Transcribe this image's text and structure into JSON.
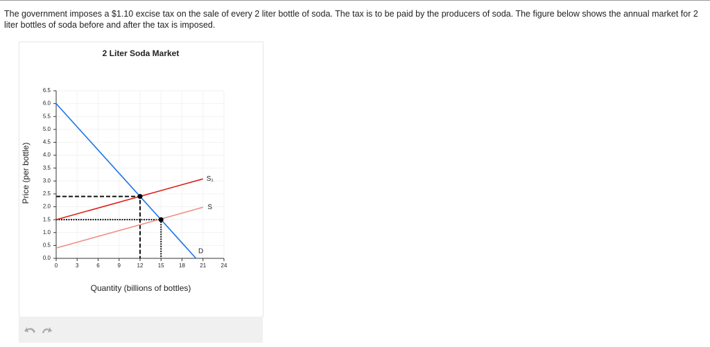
{
  "question": "The government imposes a $1.10 excise tax on the sale of every 2 liter bottle of soda. The tax is to be paid by the producers of soda. The figure below shows the annual market for 2 liter bottles of soda before and after the tax is imposed.",
  "chart_data": {
    "type": "line",
    "title": "2 Liter Soda Market",
    "x_label": "Quantity (billions of bottles)",
    "y_label": "Price (per bottle)",
    "xlim": [
      0,
      24
    ],
    "ylim": [
      0,
      6.5
    ],
    "xticks": [
      0,
      3,
      6,
      9,
      12,
      15,
      18,
      21,
      24
    ],
    "yticks": [
      {
        "value": 0,
        "label": "0.0"
      },
      0.5,
      {
        "value": 1,
        "label": "1.0"
      },
      1.5,
      {
        "value": 2,
        "label": "2.0"
      },
      2.5,
      {
        "value": 3,
        "label": "3.0"
      },
      3.5,
      {
        "value": 4,
        "label": "4.0"
      },
      4.5,
      {
        "value": 5,
        "label": "5.0"
      },
      5.5,
      {
        "value": 6,
        "label": "6.0"
      },
      6.5
    ],
    "grid": true,
    "series": [
      {
        "name": "D",
        "color": "#1a73e8",
        "x": [
          0,
          20
        ],
        "values": [
          6.0,
          0
        ]
      },
      {
        "name": "S₁",
        "color": "#e0201b",
        "x": [
          0,
          21
        ],
        "values": [
          1.5,
          3.08
        ]
      },
      {
        "name": "S",
        "color": "#f28b82",
        "x": [
          0,
          21
        ],
        "values": [
          0.4,
          1.98
        ]
      }
    ],
    "reference_lines": [
      {
        "style": "dashed",
        "x": [
          0,
          12,
          12
        ],
        "values": [
          2.4,
          2.4,
          0
        ]
      },
      {
        "style": "dotted",
        "x": [
          0,
          15,
          15
        ],
        "values": [
          1.5,
          1.5,
          0
        ]
      }
    ],
    "points": {
      "x": [
        12,
        15
      ],
      "values": [
        2.4,
        1.5
      ]
    }
  }
}
